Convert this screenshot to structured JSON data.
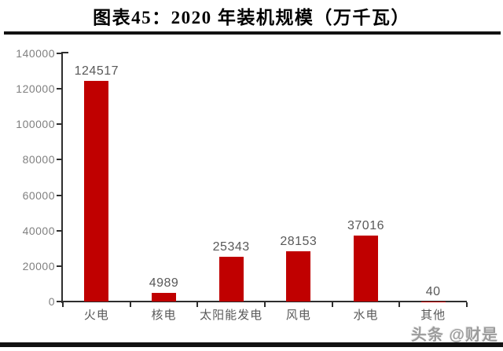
{
  "title": "图表45：2020 年装机规模（万千瓦）",
  "watermark": "头条 @财是",
  "colors": {
    "bar": "#c00000",
    "axis": "#2e2e2e",
    "axis_label": "#808080",
    "value_label": "#595959",
    "category_label": "#595959",
    "rule": "#121212",
    "watermark": "#9c9c9c",
    "background": "#ffffff"
  },
  "chart_data": {
    "type": "bar",
    "title": "图表45：2020 年装机规模（万千瓦）",
    "categories": [
      "火电",
      "核电",
      "太阳能发电",
      "风电",
      "水电",
      "其他"
    ],
    "values": [
      124517,
      4989,
      25343,
      28153,
      37016,
      40
    ],
    "value_labels": [
      "124517",
      "4989",
      "25343",
      "28153",
      "37016",
      "40"
    ],
    "xlabel": "",
    "ylabel": "",
    "ylim": [
      0,
      140000
    ],
    "ytick_step": 20000,
    "ytick_labels": [
      "0",
      "20000",
      "40000",
      "60000",
      "80000",
      "100000",
      "120000",
      "140000"
    ],
    "grid": false,
    "legend": false,
    "bar_color": "#c00000"
  }
}
